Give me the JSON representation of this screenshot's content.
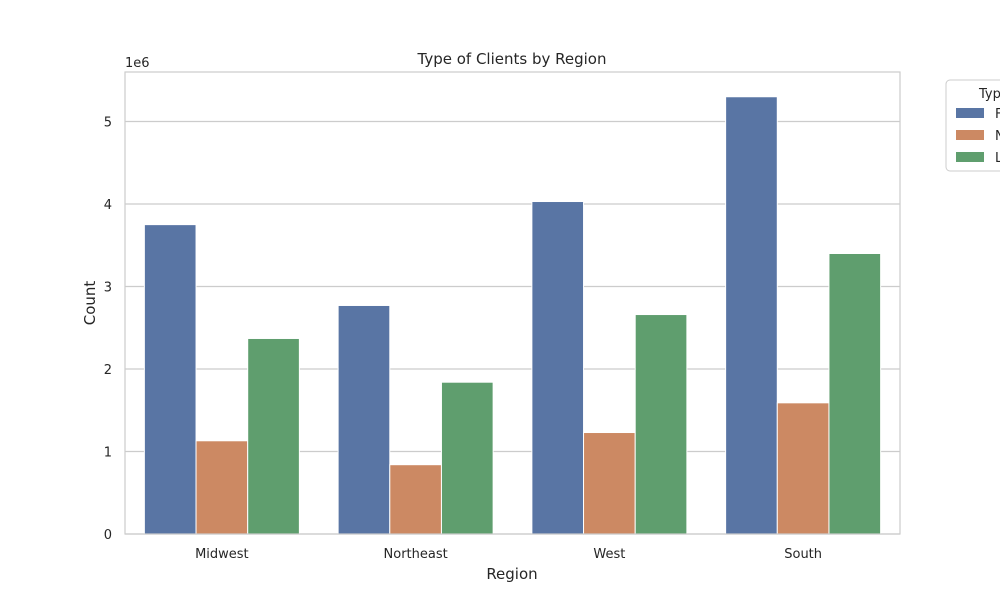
{
  "chart_data": {
    "type": "bar",
    "title": "Type of Clients by Region",
    "xlabel": "Region",
    "ylabel": "Count",
    "y_offset_label": "1e6",
    "categories": [
      "Midwest",
      "Northeast",
      "West",
      "South"
    ],
    "ylim": [
      0,
      5.6
    ],
    "yticks": [
      0,
      1,
      2,
      3,
      4,
      5
    ],
    "grid": "horizontal",
    "legend": {
      "title": "Typ",
      "placement": "top-right outside"
    },
    "series": [
      {
        "label": "F",
        "color": "#5975a4",
        "values": [
          3.75,
          2.77,
          4.03,
          5.3
        ]
      },
      {
        "label": "N",
        "color": "#cc8963",
        "values": [
          1.13,
          0.84,
          1.23,
          1.59
        ]
      },
      {
        "label": "L",
        "color": "#5f9e6e",
        "values": [
          2.37,
          1.84,
          2.66,
          3.4
        ]
      }
    ]
  }
}
